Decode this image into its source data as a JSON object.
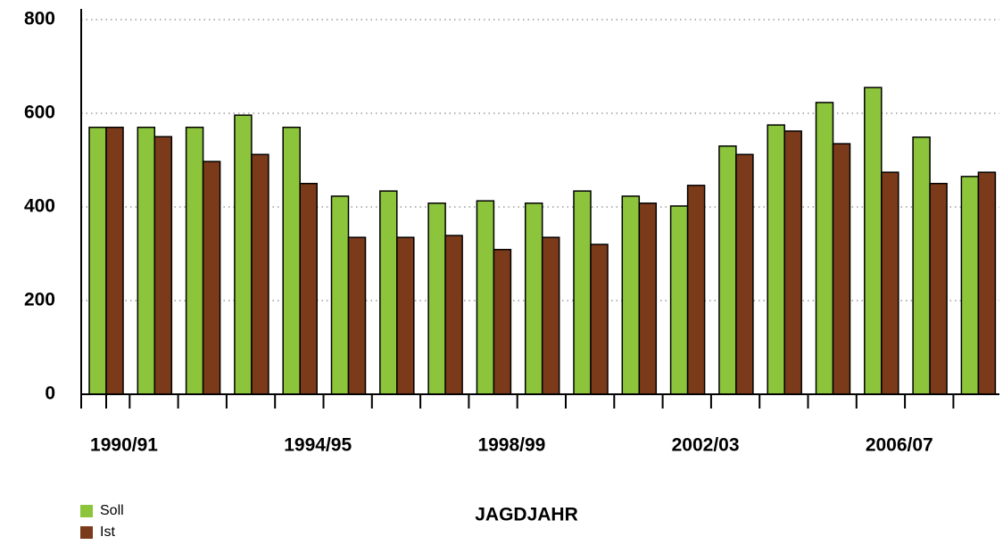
{
  "chart_data": {
    "type": "bar",
    "categories": [
      "1990/91",
      null,
      null,
      null,
      "1994/95",
      null,
      null,
      null,
      "1998/99",
      null,
      null,
      null,
      "2002/03",
      null,
      null,
      null,
      "2006/07",
      null,
      null
    ],
    "series": [
      {
        "name": "Soll",
        "color": "#8cc43c",
        "values": [
          570,
          570,
          570,
          596,
          570,
          423,
          434,
          408,
          413,
          408,
          434,
          423,
          402,
          530,
          575,
          623,
          655,
          549,
          465
        ]
      },
      {
        "name": "Ist",
        "color": "#7b3a1a",
        "values": [
          570,
          550,
          497,
          512,
          450,
          335,
          335,
          339,
          309,
          335,
          320,
          408,
          446,
          512,
          562,
          535,
          474,
          450,
          474
        ]
      }
    ],
    "xlabel": "JAGDJAHR",
    "ylim": [
      0,
      800
    ],
    "yticks": [
      0,
      200,
      400,
      600,
      800
    ],
    "grid": true,
    "legend": "bottom-left"
  }
}
